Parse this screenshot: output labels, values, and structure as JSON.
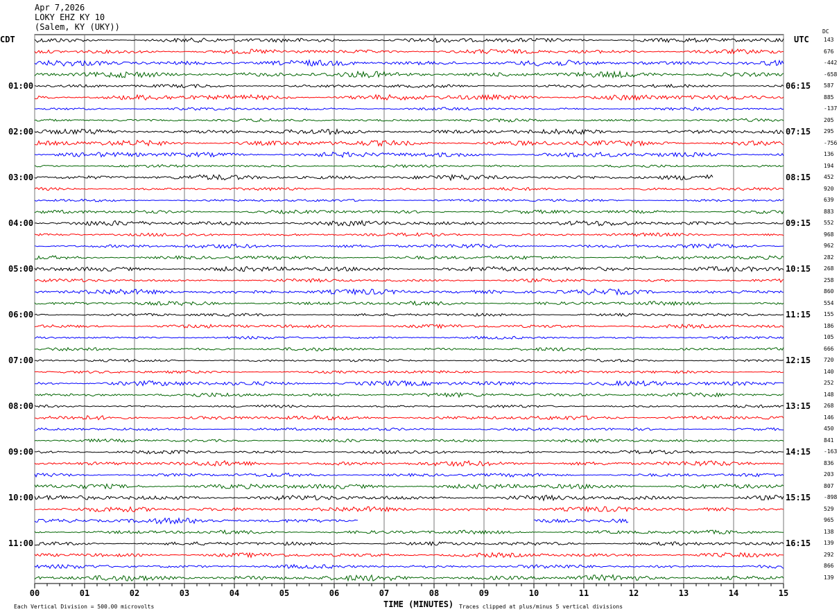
{
  "header": {
    "date": "Apr 7,2026",
    "station": "LOKY EHZ KY 10",
    "location": "(Salem, KY (UKY))"
  },
  "chart_data": {
    "type": "line",
    "title": "LOKY EHZ KY 10",
    "left_timezone": "CDT",
    "right_timezone": "UTC",
    "dc_label": "DC",
    "xlabel": "TIME (MINUTES)",
    "xlim": [
      0,
      15
    ],
    "x_ticks": [
      "00",
      "01",
      "02",
      "03",
      "04",
      "05",
      "06",
      "07",
      "08",
      "09",
      "10",
      "11",
      "12",
      "13",
      "14",
      "15"
    ],
    "grid": true,
    "left_hour_labels": [
      "01:00",
      "02:00",
      "03:00",
      "04:00",
      "05:00",
      "06:00",
      "07:00",
      "08:00",
      "09:00",
      "10:00",
      "11:00"
    ],
    "right_hour_labels": [
      "06:15",
      "07:15",
      "08:15",
      "09:15",
      "10:15",
      "11:15",
      "12:15",
      "13:15",
      "14:15",
      "15:15",
      "16:15"
    ],
    "trace_colors": [
      "#000000",
      "#ff0000",
      "#0000ff",
      "#006400"
    ],
    "dc_values": [
      "143",
      "676",
      "-442",
      "-658",
      "587",
      "885",
      "-137",
      "205",
      "295",
      "-756",
      "136",
      "194",
      "452",
      "920",
      "639",
      "883",
      "552",
      "968",
      "962",
      "282",
      "268",
      "258",
      "860",
      "554",
      "155",
      "186",
      "105",
      "666",
      "720",
      "140",
      "252",
      "148",
      "268",
      "146",
      "450",
      "841",
      "-163",
      "836",
      "203",
      "807",
      "-898",
      "529",
      "965",
      "138",
      "139",
      "292",
      "866",
      "139"
    ],
    "gaps": [
      {
        "trace": 12,
        "from_min": 13.6,
        "to_min": 15
      },
      {
        "trace": 42,
        "from_min": 6.5,
        "to_min": 10.0
      },
      {
        "trace": 42,
        "from_min": 11.9,
        "to_min": 15
      }
    ],
    "footer_left": "Each Vertical Division =  500.00 microvolts",
    "footer_right": "Traces clipped at plus/minus 5 vertical divisions"
  }
}
